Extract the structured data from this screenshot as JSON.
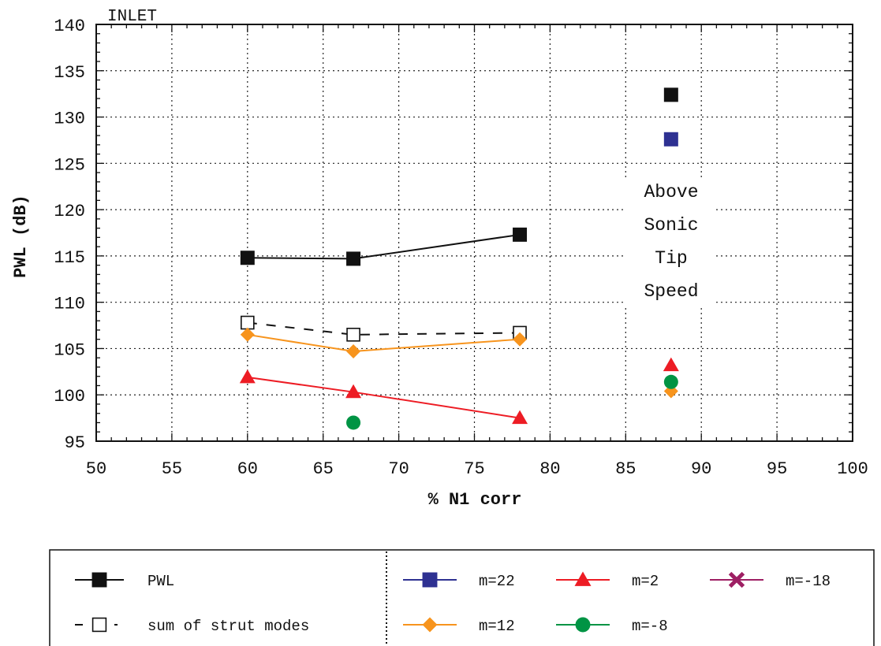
{
  "chart_data": {
    "type": "line",
    "corner_label": "INLET",
    "xlabel": "% N1 corr",
    "ylabel": "PWL (dB)",
    "xlim": [
      50,
      100
    ],
    "ylim": [
      95,
      140
    ],
    "xticks": [
      50,
      55,
      60,
      65,
      70,
      75,
      80,
      85,
      90,
      95,
      100
    ],
    "yticks": [
      95,
      100,
      105,
      110,
      115,
      120,
      125,
      130,
      135,
      140
    ],
    "grid": true,
    "annotation": [
      "Above",
      "Sonic",
      "Tip",
      "Speed"
    ],
    "series": [
      {
        "name": "PWL",
        "color": "#111111",
        "marker": "square-filled",
        "line": "solid",
        "points": [
          [
            60,
            114.8
          ],
          [
            67,
            114.7
          ],
          [
            78,
            117.3
          ],
          [
            88,
            132.4
          ]
        ],
        "connected": 3
      },
      {
        "name": "sum of strut modes",
        "color": "#111111",
        "marker": "square-open",
        "line": "dashed",
        "points": [
          [
            60,
            107.8
          ],
          [
            67,
            106.5
          ],
          [
            78,
            106.7
          ]
        ],
        "connected": 3
      },
      {
        "name": "m=22",
        "color": "#2e3192",
        "marker": "square-filled",
        "line": "solid",
        "points": [
          [
            88,
            127.6
          ]
        ],
        "connected": 0
      },
      {
        "name": "m=12",
        "color": "#f7941d",
        "marker": "diamond",
        "line": "solid",
        "points": [
          [
            60,
            106.5
          ],
          [
            67,
            104.7
          ],
          [
            78,
            106.0
          ],
          [
            88,
            100.4
          ]
        ],
        "connected": 3
      },
      {
        "name": "m=2",
        "color": "#ed1c24",
        "marker": "triangle",
        "line": "solid",
        "points": [
          [
            60,
            101.9
          ],
          [
            67,
            100.3
          ],
          [
            78,
            97.5
          ],
          [
            88,
            103.2
          ]
        ],
        "connected": 3
      },
      {
        "name": "m=-8",
        "color": "#009444",
        "marker": "circle",
        "line": "solid",
        "points": [
          [
            67,
            97.0
          ],
          [
            88,
            101.4
          ]
        ],
        "connected": 0
      },
      {
        "name": "m=-18",
        "color": "#9e1f63",
        "marker": "x",
        "line": "solid",
        "points": [],
        "connected": 0
      }
    ],
    "legend": {
      "placement": "bottom",
      "left_column": [
        "PWL",
        "sum of strut modes"
      ],
      "right_rows": [
        [
          "m=22",
          "m=2",
          "m=-18"
        ],
        [
          "m=12",
          "m=-8"
        ]
      ]
    }
  }
}
